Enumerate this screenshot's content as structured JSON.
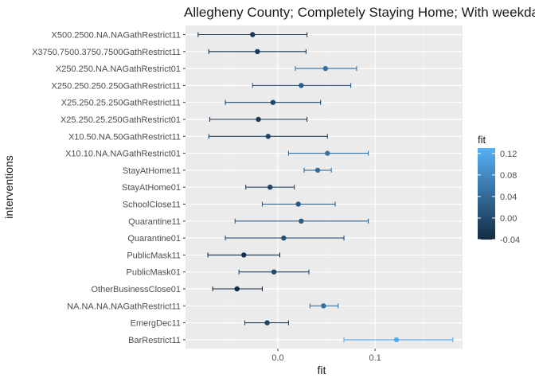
{
  "chart_data": {
    "type": "scatter",
    "subtype": "point-range",
    "title": "Allegheny County; Completely Staying Home; With weekday",
    "xlabel": "fit",
    "ylabel": "interventions",
    "xlim": [
      -0.095,
      0.19
    ],
    "x_ticks": [
      0.0,
      0.1
    ],
    "x_tick_labels": [
      "0.0",
      "0.1"
    ],
    "grid": true,
    "legend_placement": "right",
    "legend": {
      "title": "fit",
      "scale_min": -0.04,
      "scale_max": 0.13,
      "ticks": [
        0.12,
        0.08,
        0.04,
        0.0,
        -0.04
      ],
      "tick_labels": [
        "0.12",
        "0.08",
        "0.04",
        "0.00",
        "-0.04"
      ],
      "color_low": "#132b43",
      "color_high": "#56b1f7"
    },
    "categories": [
      "X500.2500.NA.NAGathRestrict11",
      "X3750.7500.3750.7500GathRestrict11",
      "X250.250.NA.NAGathRestrict01",
      "X250.250.250.250GathRestrict11",
      "X25.250.25.250GathRestrict11",
      "X25.250.25.250GathRestrict01",
      "X10.50.NA.50GathRestrict11",
      "X10.10.NA.NAGathRestrict01",
      "StayAtHome11",
      "StayAtHome01",
      "SchoolClose11",
      "Quarantine11",
      "Quarantine01",
      "PublicMask11",
      "PublicMask01",
      "OtherBusinessClose01",
      "NA.NA.NA.NAGathRestrict11",
      "EmergDec11",
      "BarRestrict11"
    ],
    "values": [
      -0.026,
      -0.021,
      0.049,
      0.024,
      -0.005,
      -0.02,
      -0.01,
      0.051,
      0.041,
      -0.008,
      0.021,
      0.024,
      0.006,
      -0.035,
      -0.004,
      -0.042,
      0.047,
      -0.011,
      0.122
    ],
    "lower": [
      -0.082,
      -0.071,
      0.018,
      -0.026,
      -0.054,
      -0.07,
      -0.071,
      0.011,
      0.027,
      -0.033,
      -0.016,
      -0.044,
      -0.054,
      -0.072,
      -0.04,
      -0.067,
      0.033,
      -0.034,
      0.068
    ],
    "upper": [
      0.03,
      0.029,
      0.081,
      0.075,
      0.044,
      0.03,
      0.051,
      0.093,
      0.055,
      0.017,
      0.059,
      0.093,
      0.068,
      0.002,
      0.032,
      -0.016,
      0.062,
      0.011,
      0.18
    ]
  }
}
